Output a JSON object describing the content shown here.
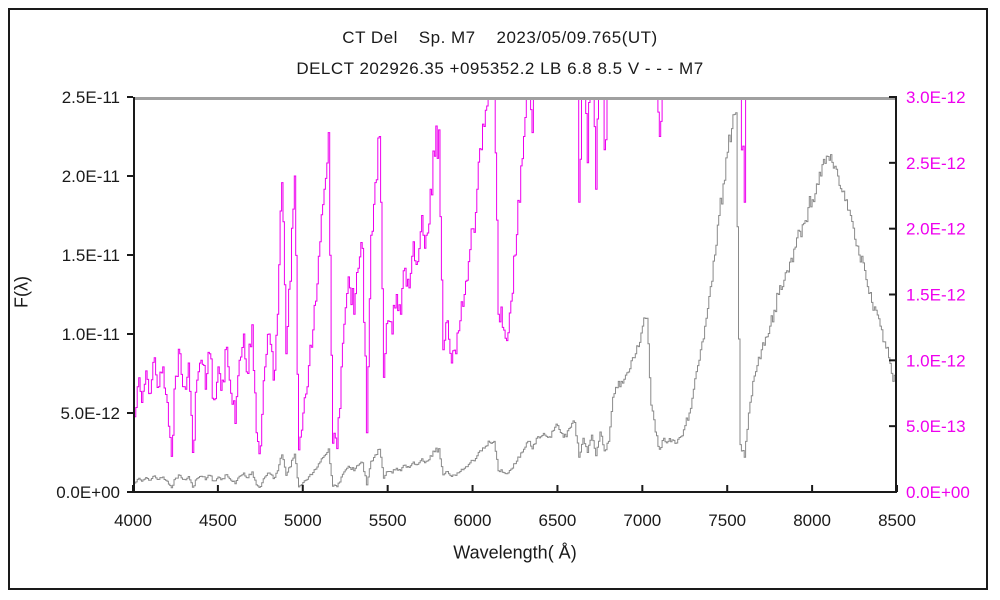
{
  "titles": {
    "line1": "CT Del    Sp. M7    2023/05/09.765(UT)",
    "line2": "DELCT 202926.35 +095352.2 LB 6.8 8.5 V - - - M7"
  },
  "colors": {
    "left_curve": "#8a8a8a",
    "right_curve": "#ee00ee",
    "right_labels": "#ee00ee",
    "axis": "#1a1a1a",
    "top_border": "#a0a0a0",
    "tick_text": "#1a1a1a",
    "background": "#ffffff"
  },
  "chart_data": {
    "type": "line",
    "title": "CT Del Sp. M7 2023/05/09.765(UT)",
    "subtitle": "DELCT 202926.35 +095352.2 LB 6.8 8.5 V - - - M7",
    "xlabel": "Wavelength( Å)",
    "ylabel_left": "F(λ)",
    "x_axis": {
      "min": 4000,
      "max": 8500,
      "tick_step": 500,
      "tick_labels": [
        "4000",
        "4500",
        "5000",
        "5500",
        "6000",
        "6500",
        "7000",
        "7500",
        "8000",
        "8500"
      ]
    },
    "y_axis_left": {
      "min": 0,
      "max": 2.5e-11,
      "tick_labels": [
        "0.0E+00",
        "5.0E-12",
        "1.0E-11",
        "1.5E-11",
        "2.0E-11",
        "2.5E-11"
      ]
    },
    "y_axis_right": {
      "min": 0,
      "max": 3e-12,
      "tick_labels": [
        "0.0E+00",
        "5.0E-13",
        "1.0E-12",
        "1.5E-12",
        "2.0E-12",
        "2.5E-12",
        "3.0E-12"
      ]
    },
    "series": [
      {
        "name": "spectrum-left-scale",
        "axis": "left",
        "units": "1e-11",
        "scale_from_flux_1e12": 0.1,
        "color": "#8a8a8a",
        "note": "same spectrum plotted against left axis"
      },
      {
        "name": "spectrum-right-scale-magnified",
        "axis": "right",
        "units": "1e-12",
        "scale_from_flux_1e12": 1,
        "color": "#ee00ee",
        "note": "same spectrum magnified on right axis, clipped at plot top"
      }
    ],
    "wavelength_start": 4000,
    "wavelength_step": 25,
    "flux_1e12": [
      0.62,
      0.8,
      0.68,
      0.92,
      0.75,
      1.02,
      0.8,
      0.95,
      0.68,
      0.27,
      0.88,
      1.05,
      0.8,
      0.98,
      0.3,
      0.85,
      1.0,
      0.78,
      1.05,
      0.7,
      0.95,
      0.85,
      1.1,
      0.75,
      0.52,
      1.0,
      1.2,
      0.9,
      1.27,
      0.45,
      0.35,
      0.95,
      1.2,
      0.85,
      1.35,
      2.35,
      1.05,
      1.6,
      2.4,
      0.32,
      0.6,
      0.8,
      1.1,
      1.45,
      1.9,
      2.3,
      2.73,
      0.37,
      0.33,
      0.95,
      1.4,
      1.55,
      1.35,
      1.7,
      1.85,
      0.45,
      1.95,
      2.35,
      2.7,
      0.87,
      1.3,
      1.2,
      1.5,
      1.35,
      1.7,
      1.55,
      1.9,
      1.75,
      2.1,
      1.95,
      2.3,
      2.55,
      2.75,
      1.08,
      1.3,
      0.98,
      1.05,
      1.3,
      1.5,
      1.75,
      2.0,
      2.3,
      2.6,
      2.9,
      3.15,
      3.2,
      1.35,
      1.25,
      1.15,
      1.45,
      1.8,
      2.2,
      2.7,
      3.2,
      2.73,
      3.4,
      3.5,
      3.6,
      3.5,
      3.9,
      4.2,
      3.7,
      3.5,
      4.1,
      4.4,
      2.2,
      3.4,
      2.5,
      3.6,
      2.3,
      3.8,
      2.6,
      3.2,
      6.0,
      6.6,
      7.0,
      7.4,
      7.8,
      8.5,
      9.2,
      10.5,
      11.0,
      5.5,
      3.8,
      2.7,
      3.4,
      3.2,
      3.3,
      3.1,
      3.5,
      4.2,
      5.0,
      6.5,
      8.0,
      9.5,
      11.0,
      13.0,
      15.0,
      17.5,
      19.5,
      21.5,
      23.0,
      24.0,
      3.0,
      2.2,
      5.0,
      7.0,
      8.0,
      9.0,
      9.8,
      10.5,
      11.5,
      12.5,
      13.0,
      14.0,
      14.8,
      15.5,
      16.5,
      17.0,
      18.0,
      18.5,
      19.5,
      20.0,
      20.8,
      21.0,
      20.5,
      20.0,
      19.0,
      18.5,
      17.5,
      16.0,
      15.0,
      14.5,
      13.0,
      12.0,
      11.5,
      10.5,
      9.5,
      8.5,
      7.0,
      7.8
    ],
    "noise": {
      "seed": 7,
      "frac": 0.03,
      "floor_1e12": 0.09
    },
    "grid": false,
    "legend": "none"
  }
}
